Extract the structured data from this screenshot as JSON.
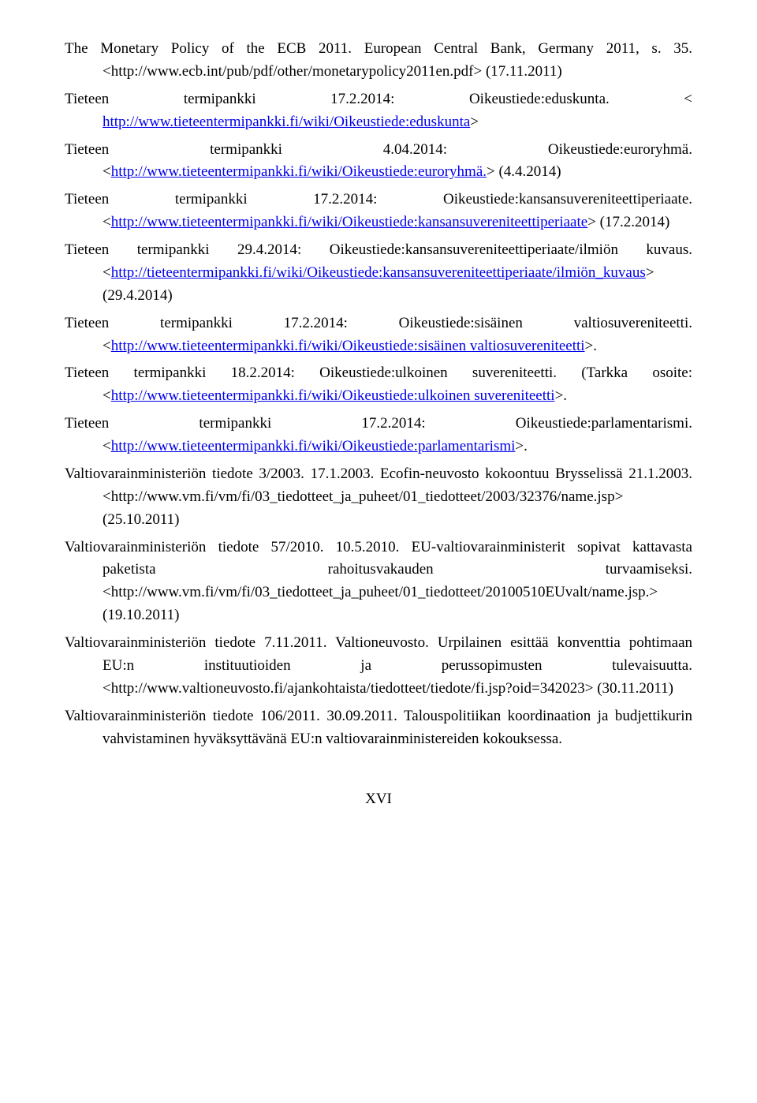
{
  "entries": [
    {
      "pre": "The Monetary Policy of the ECB 2011. European Central Bank, Germany 2011, s. 35. <http://www.ecb.int/pub/pdf/other/monetarypolicy2011en.pdf> (17.11.2011)",
      "link": "",
      "post": ""
    },
    {
      "pre": "Tieteen termipankki 17.2.2014: Oikeustiede:eduskunta. < ",
      "link": "http://www.tieteentermipankki.fi/wiki/Oikeustiede:eduskunta",
      "post": ">"
    },
    {
      "pre": "Tieteen termipankki 4.04.2014: Oikeustiede:euroryhmä. <",
      "link": "http://www.tieteentermipankki.fi/wiki/Oikeustiede:euroryhmä.",
      "post": "> (4.4.2014)"
    },
    {
      "pre": "Tieteen termipankki 17.2.2014: Oikeustiede:kansansuvereniteettiperiaate. <",
      "link": "http://www.tieteentermipankki.fi/wiki/Oikeustiede:kansansuvereniteettiperiaate",
      "post": "> (17.2.2014)"
    },
    {
      "pre": "Tieteen termipankki 29.4.2014: Oikeustiede:kansansuvereniteettiperiaate/ilmiön kuvaus. <",
      "link": "http://tieteentermipankki.fi/wiki/Oikeustiede:kansansuvereniteettiperiaate/ilmiön_kuvaus",
      "post": "> (29.4.2014)"
    },
    {
      "pre": "Tieteen termipankki 17.2.2014: Oikeustiede:sisäinen valtiosuvereniteetti. <",
      "link": "http://www.tieteentermipankki.fi/wiki/Oikeustiede:sisäinen valtiosuvereniteetti",
      "post": ">."
    },
    {
      "pre": "Tieteen termipankki 18.2.2014: Oikeustiede:ulkoinen suvereniteetti. (Tarkka osoite: <",
      "link": "http://www.tieteentermipankki.fi/wiki/Oikeustiede:ulkoinen suvereniteetti",
      "post": ">."
    },
    {
      "pre": "Tieteen termipankki 17.2.2014: Oikeustiede:parlamentarismi. <",
      "link": "http://www.tieteentermipankki.fi/wiki/Oikeustiede:parlamentarismi",
      "post": ">."
    },
    {
      "pre": "Valtiovarainministeriön tiedote 3/2003. 17.1.2003. Ecofin-neuvosto kokoontuu Brysselissä 21.1.2003. <http://www.vm.fi/vm/fi/03_tiedotteet_ja_puheet/01_tiedotteet/2003/32376/name.jsp> (25.10.2011)",
      "link": "",
      "post": ""
    },
    {
      "pre": "Valtiovarainministeriön tiedote 57/2010. 10.5.2010. EU-valtiovarainministerit sopivat kattavasta paketista rahoitusvakauden turvaamiseksi. <http://www.vm.fi/vm/fi/03_tiedotteet_ja_puheet/01_tiedotteet/20100510EUvalt/name.jsp.> (19.10.2011)",
      "link": "",
      "post": ""
    },
    {
      "pre": "Valtiovarainministeriön tiedote 7.11.2011. Valtioneuvosto. Urpilainen esittää konventtia pohtimaan EU:n instituutioiden ja perussopimusten tulevaisuutta. <http://www.valtioneuvosto.fi/ajankohtaista/tiedotteet/tiedote/fi.jsp?oid=342023> (30.11.2011)",
      "link": "",
      "post": ""
    },
    {
      "pre": "Valtiovarainministeriön tiedote 106/2011. 30.09.2011. Talouspolitiikan koordinaation ja budjettikurin vahvistaminen hyväksyttävänä EU:n valtiovarainministereiden kokouksessa.",
      "link": "",
      "post": ""
    }
  ],
  "page_number": "XVI"
}
